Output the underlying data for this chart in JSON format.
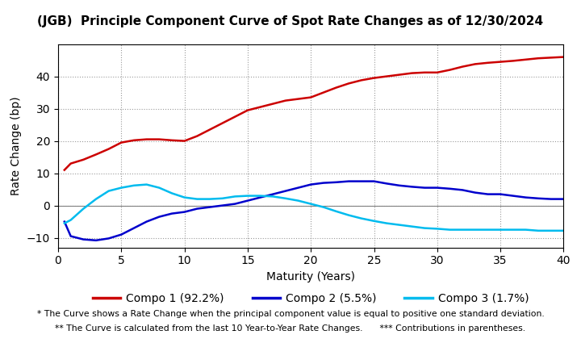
{
  "title": "(JGB)  Principle Component Curve of Spot Rate Changes as of 12/30/2024",
  "xlabel": "Maturity (Years)",
  "ylabel": "Rate Change (bp)",
  "xlim": [
    0,
    40
  ],
  "ylim": [
    -13,
    50
  ],
  "yticks": [
    -10,
    0,
    10,
    20,
    30,
    40
  ],
  "xticks": [
    0,
    5,
    10,
    15,
    20,
    25,
    30,
    35,
    40
  ],
  "legend_labels": [
    "Compo 1 (92.2%)",
    "Compo 2 (5.5%)",
    "Compo 3 (1.7%)"
  ],
  "legend_colors": [
    "#cc0000",
    "#0000cc",
    "#00bbee"
  ],
  "footnote1": "* The Curve shows a Rate Change when the principal component value is equal to positive one standard deviation.",
  "footnote2": "** The Curve is calculated from the last 10 Year-to-Year Rate Changes.      *** Contributions in parentheses.",
  "compo1_x": [
    0.5,
    1,
    2,
    3,
    4,
    5,
    6,
    7,
    8,
    9,
    10,
    11,
    12,
    13,
    14,
    15,
    16,
    17,
    18,
    19,
    20,
    21,
    22,
    23,
    24,
    25,
    26,
    27,
    28,
    29,
    30,
    31,
    32,
    33,
    34,
    35,
    36,
    37,
    38,
    39,
    40
  ],
  "compo1_y": [
    11.0,
    13.0,
    14.2,
    15.8,
    17.5,
    19.5,
    20.2,
    20.5,
    20.5,
    20.2,
    20.0,
    21.5,
    23.5,
    25.5,
    27.5,
    29.5,
    30.5,
    31.5,
    32.5,
    33.0,
    33.5,
    35.0,
    36.5,
    37.8,
    38.8,
    39.5,
    40.0,
    40.5,
    41.0,
    41.2,
    41.2,
    42.0,
    43.0,
    43.8,
    44.2,
    44.5,
    44.8,
    45.2,
    45.6,
    45.8,
    46.0
  ],
  "compo2_x": [
    0.5,
    1,
    2,
    3,
    4,
    5,
    6,
    7,
    8,
    9,
    10,
    11,
    12,
    13,
    14,
    15,
    16,
    17,
    18,
    19,
    20,
    21,
    22,
    23,
    24,
    25,
    26,
    27,
    28,
    29,
    30,
    31,
    32,
    33,
    34,
    35,
    36,
    37,
    38,
    39,
    40
  ],
  "compo2_y": [
    -5.0,
    -9.5,
    -10.5,
    -10.8,
    -10.2,
    -9.0,
    -7.0,
    -5.0,
    -3.5,
    -2.5,
    -2.0,
    -1.0,
    -0.5,
    0.0,
    0.5,
    1.5,
    2.5,
    3.5,
    4.5,
    5.5,
    6.5,
    7.0,
    7.2,
    7.5,
    7.5,
    7.5,
    6.8,
    6.2,
    5.8,
    5.5,
    5.5,
    5.2,
    4.8,
    4.0,
    3.5,
    3.5,
    3.0,
    2.5,
    2.2,
    2.0,
    2.0
  ],
  "compo3_x": [
    0.5,
    1,
    2,
    3,
    4,
    5,
    6,
    7,
    8,
    9,
    10,
    11,
    12,
    13,
    14,
    15,
    16,
    17,
    18,
    19,
    20,
    21,
    22,
    23,
    24,
    25,
    26,
    27,
    28,
    29,
    30,
    31,
    32,
    33,
    34,
    35,
    36,
    37,
    38,
    39,
    40
  ],
  "compo3_y": [
    -5.5,
    -4.5,
    -1.0,
    2.0,
    4.5,
    5.5,
    6.2,
    6.5,
    5.5,
    3.8,
    2.5,
    2.0,
    2.0,
    2.2,
    2.8,
    3.0,
    3.0,
    2.8,
    2.2,
    1.5,
    0.5,
    -0.5,
    -1.8,
    -3.0,
    -4.0,
    -4.8,
    -5.5,
    -6.0,
    -6.5,
    -7.0,
    -7.2,
    -7.5,
    -7.5,
    -7.5,
    -7.5,
    -7.5,
    -7.5,
    -7.5,
    -7.8,
    -7.8,
    -7.8
  ]
}
